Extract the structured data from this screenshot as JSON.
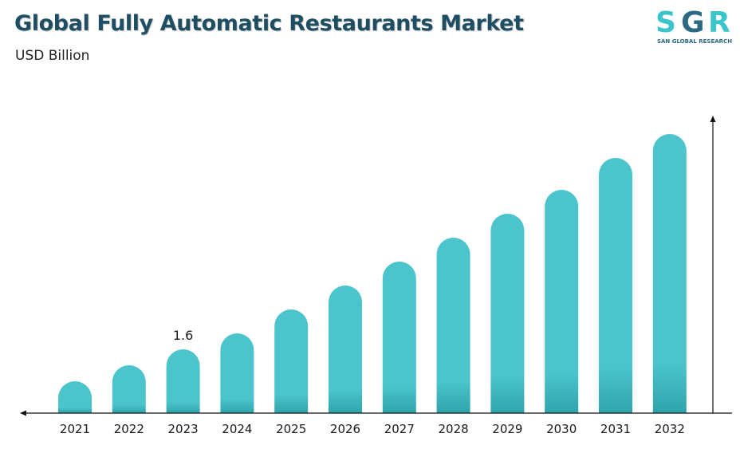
{
  "header": {
    "title": "Global Fully Automatic Restaurants Market",
    "subtitle": "USD Billion"
  },
  "logo": {
    "mark": "SGR",
    "tagline": "SAN GLOBAL RESEARCH",
    "colors": {
      "s": "#3bc4c9",
      "g": "#2b6a82",
      "r": "#3bc4c9"
    }
  },
  "chart_data": {
    "type": "bar",
    "categories": [
      "2021",
      "2022",
      "2023",
      "2024",
      "2025",
      "2026",
      "2027",
      "2028",
      "2029",
      "2030",
      "2031",
      "2032"
    ],
    "values": [
      0.8,
      1.2,
      1.6,
      2.0,
      2.6,
      3.2,
      3.8,
      4.4,
      5.0,
      5.6,
      6.4,
      7.0
    ],
    "data_labels": [
      {
        "category": "2023",
        "text": "1.6"
      }
    ],
    "ylim": [
      0,
      7.4
    ],
    "bar_color": "#4bc4cc",
    "bar_gradient_bottom": "#2fa4aa",
    "axis_color": "#111111",
    "grid": false
  }
}
